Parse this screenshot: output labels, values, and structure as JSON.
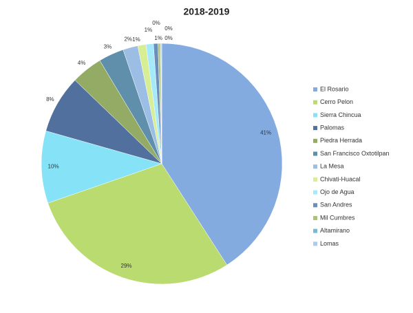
{
  "chart_data": {
    "type": "pie",
    "title": "2018-2019",
    "categories": [
      "El Rosario",
      "Cerro Pelon",
      "Sierra Chincua",
      "Palomas",
      "Piedra Herrada",
      "San Francisco Oxtotilpan",
      "La Mesa",
      "Chivati-Huacal",
      "Ojo de Agua",
      "San Andres",
      "Mil Cumbres",
      "Altamirano",
      "Lomas"
    ],
    "values": [
      40.9,
      28.8,
      9.7,
      7.8,
      4.2,
      3.4,
      2.0,
      1.1,
      1.0,
      0.6,
      0.3,
      0.1,
      0.1
    ],
    "value_labels": [
      "41%",
      "29%",
      "10%",
      "8%",
      "4%",
      "3%",
      "2%",
      "1%",
      "1%",
      "1%",
      "0%",
      "0%",
      "0%"
    ],
    "colors": [
      "#83abe0",
      "#b9db70",
      "#86e3f7",
      "#51709e",
      "#93ab64",
      "#5f8fab",
      "#9cbde4",
      "#d7ee95",
      "#a5eafa",
      "#6d8dbb",
      "#abc27c",
      "#74bcd3",
      "#adcbea"
    ],
    "legend": "right"
  }
}
